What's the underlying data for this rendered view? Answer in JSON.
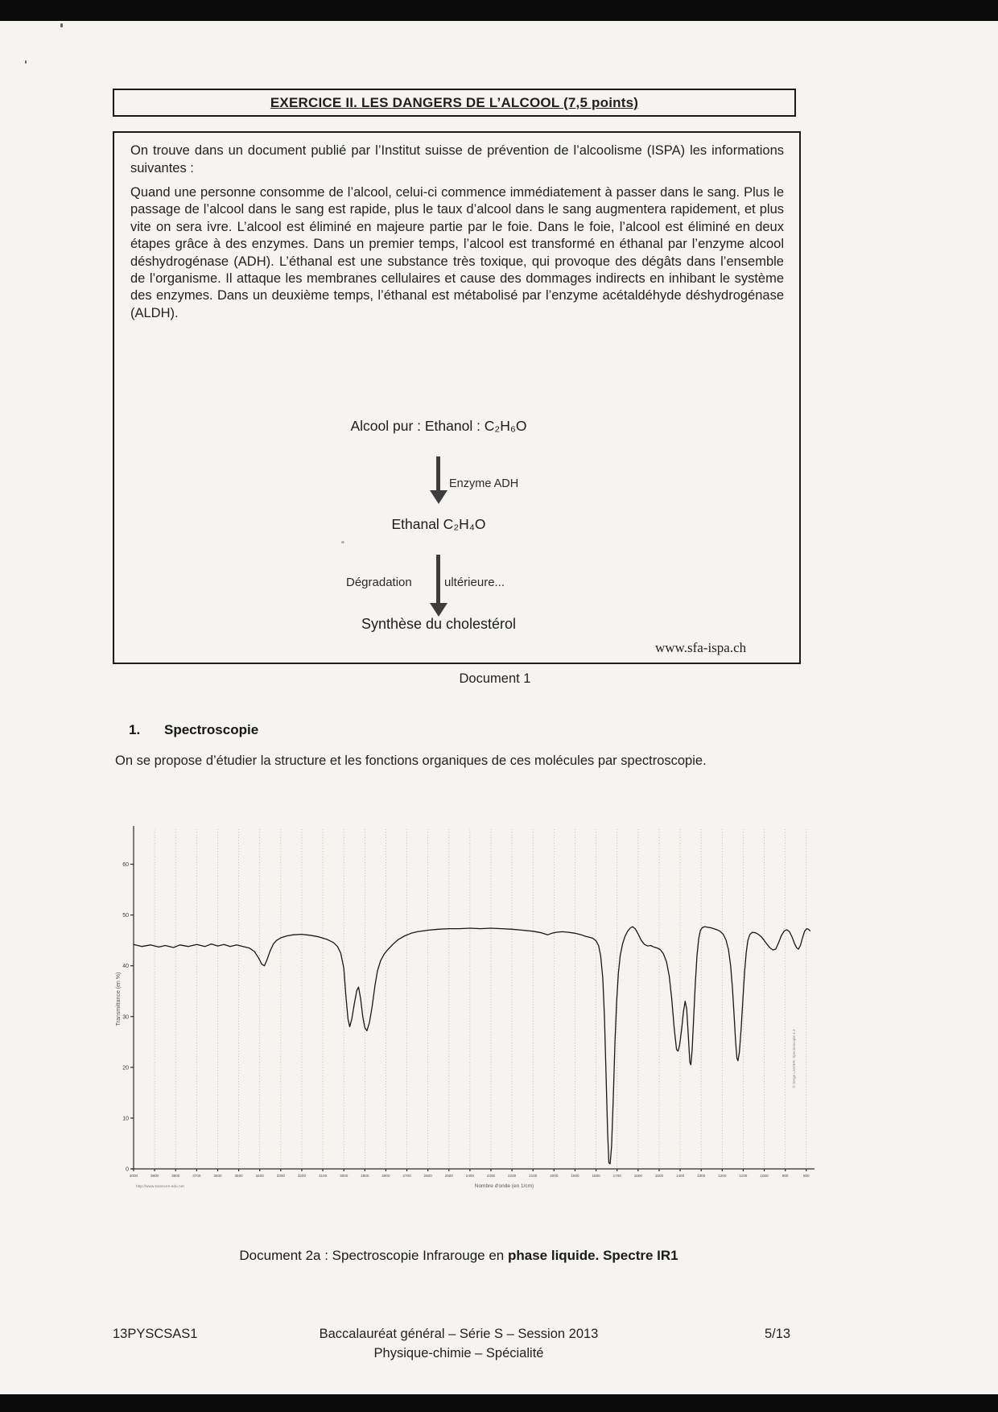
{
  "title": "EXERCICE II. LES DANGERS DE L’ALCOOL (7,5 points)",
  "document1": {
    "intro": "On trouve dans un document publié par l’Institut suisse de prévention de l’alcoolisme (ISPA) les informations suivantes :",
    "body": "Quand une personne consomme de l’alcool, celui-ci commence immédiatement à passer dans le sang. Plus le passage de l’alcool dans le sang est rapide, plus le taux d’alcool dans le sang augmentera rapidement, et plus vite on sera ivre. L’alcool est éliminé en majeure partie par le foie. Dans le foie, l’alcool est éliminé en deux étapes grâce à des enzymes. Dans un premier temps, l’alcool est transformé en éthanal par l’enzyme alcool déshydrogénase (ADH). L’éthanal est une substance très toxique, qui provoque des dégâts dans l’ensemble de l’organisme. Il attaque les membranes cellulaires et cause des dommages indirects en inhibant le système des enzymes. Dans un deuxième temps, l’éthanal est métabolisé par l’enzyme acétaldéhyde déshydrogénase (ALDH).",
    "diagram": {
      "step1": "Alcool pur : Ethanol : C₂H₆O",
      "arrow1_label": "Enzyme ADH",
      "step2": "Ethanal C₂H₄O",
      "stray_mark": "”",
      "arrow2_label_left": "Dégradation",
      "arrow2_label_right": "ultérieure...",
      "step3": "Synthèse du cholestérol",
      "source": "www.sfa-ispa.ch"
    },
    "caption": "Document 1"
  },
  "section1": {
    "number": "1.",
    "heading": "Spectroscopie",
    "intro": "On se propose d’étudier la structure et les fonctions organiques de ces molécules par spectroscopie."
  },
  "chart_data": {
    "type": "line",
    "title": "",
    "xlabel": "Nombre d'onde (en 1/cm)",
    "ylabel": "Transmittance (en %)",
    "watermark_left": "http://www.sciences-edu.net",
    "watermark_right": "© Serge LAGIER, Spectroscopie 4.3",
    "x_axis": {
      "max": 4000,
      "min": 780,
      "tick_step": 100,
      "reversed": true,
      "grid": "vertical dotted"
    },
    "y_axis": {
      "lim": [
        0,
        65
      ],
      "ticks": [
        0,
        10,
        20,
        30,
        40,
        50,
        60
      ]
    },
    "points": [
      [
        4000,
        44.2
      ],
      [
        3960,
        43.8
      ],
      [
        3920,
        44.1
      ],
      [
        3880,
        43.7
      ],
      [
        3850,
        44.0
      ],
      [
        3810,
        43.6
      ],
      [
        3780,
        44.1
      ],
      [
        3740,
        43.8
      ],
      [
        3700,
        44.2
      ],
      [
        3660,
        43.8
      ],
      [
        3630,
        44.3
      ],
      [
        3600,
        43.9
      ],
      [
        3570,
        44.2
      ],
      [
        3540,
        43.8
      ],
      [
        3510,
        44.1
      ],
      [
        3480,
        43.8
      ],
      [
        3450,
        43.5
      ],
      [
        3425,
        42.8
      ],
      [
        3405,
        41.5
      ],
      [
        3390,
        40.3
      ],
      [
        3378,
        40.0
      ],
      [
        3365,
        41.2
      ],
      [
        3350,
        43.0
      ],
      [
        3335,
        44.3
      ],
      [
        3320,
        45.0
      ],
      [
        3300,
        45.5
      ],
      [
        3270,
        45.9
      ],
      [
        3240,
        46.1
      ],
      [
        3200,
        46.2
      ],
      [
        3160,
        46.0
      ],
      [
        3120,
        45.7
      ],
      [
        3080,
        45.2
      ],
      [
        3050,
        44.6
      ],
      [
        3030,
        43.8
      ],
      [
        3015,
        42.5
      ],
      [
        3000,
        39.5
      ],
      [
        2990,
        34.0
      ],
      [
        2980,
        29.5
      ],
      [
        2972,
        28.0
      ],
      [
        2962,
        29.5
      ],
      [
        2950,
        32.5
      ],
      [
        2938,
        35.2
      ],
      [
        2930,
        35.8
      ],
      [
        2920,
        33.5
      ],
      [
        2910,
        30.0
      ],
      [
        2900,
        27.8
      ],
      [
        2890,
        27.2
      ],
      [
        2878,
        28.8
      ],
      [
        2865,
        32.0
      ],
      [
        2852,
        36.0
      ],
      [
        2840,
        39.0
      ],
      [
        2825,
        41.0
      ],
      [
        2808,
        42.3
      ],
      [
        2790,
        43.2
      ],
      [
        2765,
        44.3
      ],
      [
        2740,
        45.2
      ],
      [
        2710,
        45.9
      ],
      [
        2680,
        46.4
      ],
      [
        2650,
        46.7
      ],
      [
        2600,
        47.0
      ],
      [
        2550,
        47.2
      ],
      [
        2500,
        47.3
      ],
      [
        2450,
        47.3
      ],
      [
        2400,
        47.4
      ],
      [
        2350,
        47.3
      ],
      [
        2300,
        47.4
      ],
      [
        2250,
        47.3
      ],
      [
        2200,
        47.2
      ],
      [
        2150,
        47.0
      ],
      [
        2100,
        46.8
      ],
      [
        2060,
        46.5
      ],
      [
        2030,
        46.1
      ],
      [
        2010,
        46.4
      ],
      [
        1990,
        46.6
      ],
      [
        1960,
        46.7
      ],
      [
        1930,
        46.6
      ],
      [
        1900,
        46.4
      ],
      [
        1870,
        46.1
      ],
      [
        1850,
        45.8
      ],
      [
        1830,
        45.6
      ],
      [
        1815,
        45.4
      ],
      [
        1800,
        44.9
      ],
      [
        1788,
        44.0
      ],
      [
        1778,
        42.0
      ],
      [
        1768,
        37.5
      ],
      [
        1760,
        30.0
      ],
      [
        1752,
        18.0
      ],
      [
        1745,
        7.0
      ],
      [
        1739,
        1.2
      ],
      [
        1733,
        1.0
      ],
      [
        1726,
        4.5
      ],
      [
        1718,
        14.0
      ],
      [
        1710,
        25.0
      ],
      [
        1702,
        33.0
      ],
      [
        1694,
        38.5
      ],
      [
        1685,
        42.0
      ],
      [
        1674,
        44.3
      ],
      [
        1662,
        45.8
      ],
      [
        1650,
        46.8
      ],
      [
        1638,
        47.4
      ],
      [
        1626,
        47.7
      ],
      [
        1614,
        47.3
      ],
      [
        1600,
        46.3
      ],
      [
        1585,
        45.0
      ],
      [
        1570,
        44.2
      ],
      [
        1555,
        43.9
      ],
      [
        1540,
        44.0
      ],
      [
        1525,
        43.7
      ],
      [
        1510,
        43.5
      ],
      [
        1495,
        43.2
      ],
      [
        1480,
        42.4
      ],
      [
        1465,
        40.8
      ],
      [
        1452,
        38.0
      ],
      [
        1440,
        33.5
      ],
      [
        1428,
        27.5
      ],
      [
        1417,
        23.5
      ],
      [
        1410,
        23.2
      ],
      [
        1402,
        24.5
      ],
      [
        1393,
        27.5
      ],
      [
        1384,
        31.0
      ],
      [
        1376,
        33.0
      ],
      [
        1369,
        31.5
      ],
      [
        1361,
        26.0
      ],
      [
        1354,
        21.0
      ],
      [
        1349,
        20.5
      ],
      [
        1343,
        23.5
      ],
      [
        1336,
        29.5
      ],
      [
        1328,
        36.5
      ],
      [
        1320,
        42.0
      ],
      [
        1312,
        45.3
      ],
      [
        1304,
        46.9
      ],
      [
        1295,
        47.5
      ],
      [
        1283,
        47.7
      ],
      [
        1270,
        47.6
      ],
      [
        1255,
        47.5
      ],
      [
        1240,
        47.3
      ],
      [
        1225,
        47.1
      ],
      [
        1210,
        46.8
      ],
      [
        1195,
        46.2
      ],
      [
        1182,
        45.1
      ],
      [
        1170,
        43.2
      ],
      [
        1160,
        40.0
      ],
      [
        1151,
        35.5
      ],
      [
        1143,
        30.0
      ],
      [
        1136,
        25.0
      ],
      [
        1130,
        21.8
      ],
      [
        1125,
        21.3
      ],
      [
        1118,
        23.0
      ],
      [
        1110,
        27.5
      ],
      [
        1102,
        33.0
      ],
      [
        1094,
        38.5
      ],
      [
        1086,
        42.5
      ],
      [
        1078,
        45.0
      ],
      [
        1068,
        46.2
      ],
      [
        1056,
        46.6
      ],
      [
        1042,
        46.5
      ],
      [
        1028,
        46.2
      ],
      [
        1014,
        45.7
      ],
      [
        1000,
        45.0
      ],
      [
        986,
        44.2
      ],
      [
        972,
        43.5
      ],
      [
        958,
        43.1
      ],
      [
        945,
        43.3
      ],
      [
        932,
        44.5
      ],
      [
        919,
        45.9
      ],
      [
        906,
        46.8
      ],
      [
        893,
        47.1
      ],
      [
        880,
        46.7
      ],
      [
        867,
        45.6
      ],
      [
        855,
        44.3
      ],
      [
        845,
        43.5
      ],
      [
        837,
        43.3
      ],
      [
        828,
        44.0
      ],
      [
        818,
        45.5
      ],
      [
        808,
        46.8
      ],
      [
        798,
        47.3
      ],
      [
        790,
        47.2
      ],
      [
        782,
        46.9
      ]
    ]
  },
  "chart_caption": {
    "normal": "Document 2a : Spectroscopie Infrarouge en ",
    "bold": "phase liquide. Spectre IR1"
  },
  "footer": {
    "left": "13PYSCSAS1",
    "center_line1": "Baccalauréat général – Série S – Session 2013",
    "center_line2": "Physique-chimie – Spécialité",
    "right": "5/13"
  }
}
